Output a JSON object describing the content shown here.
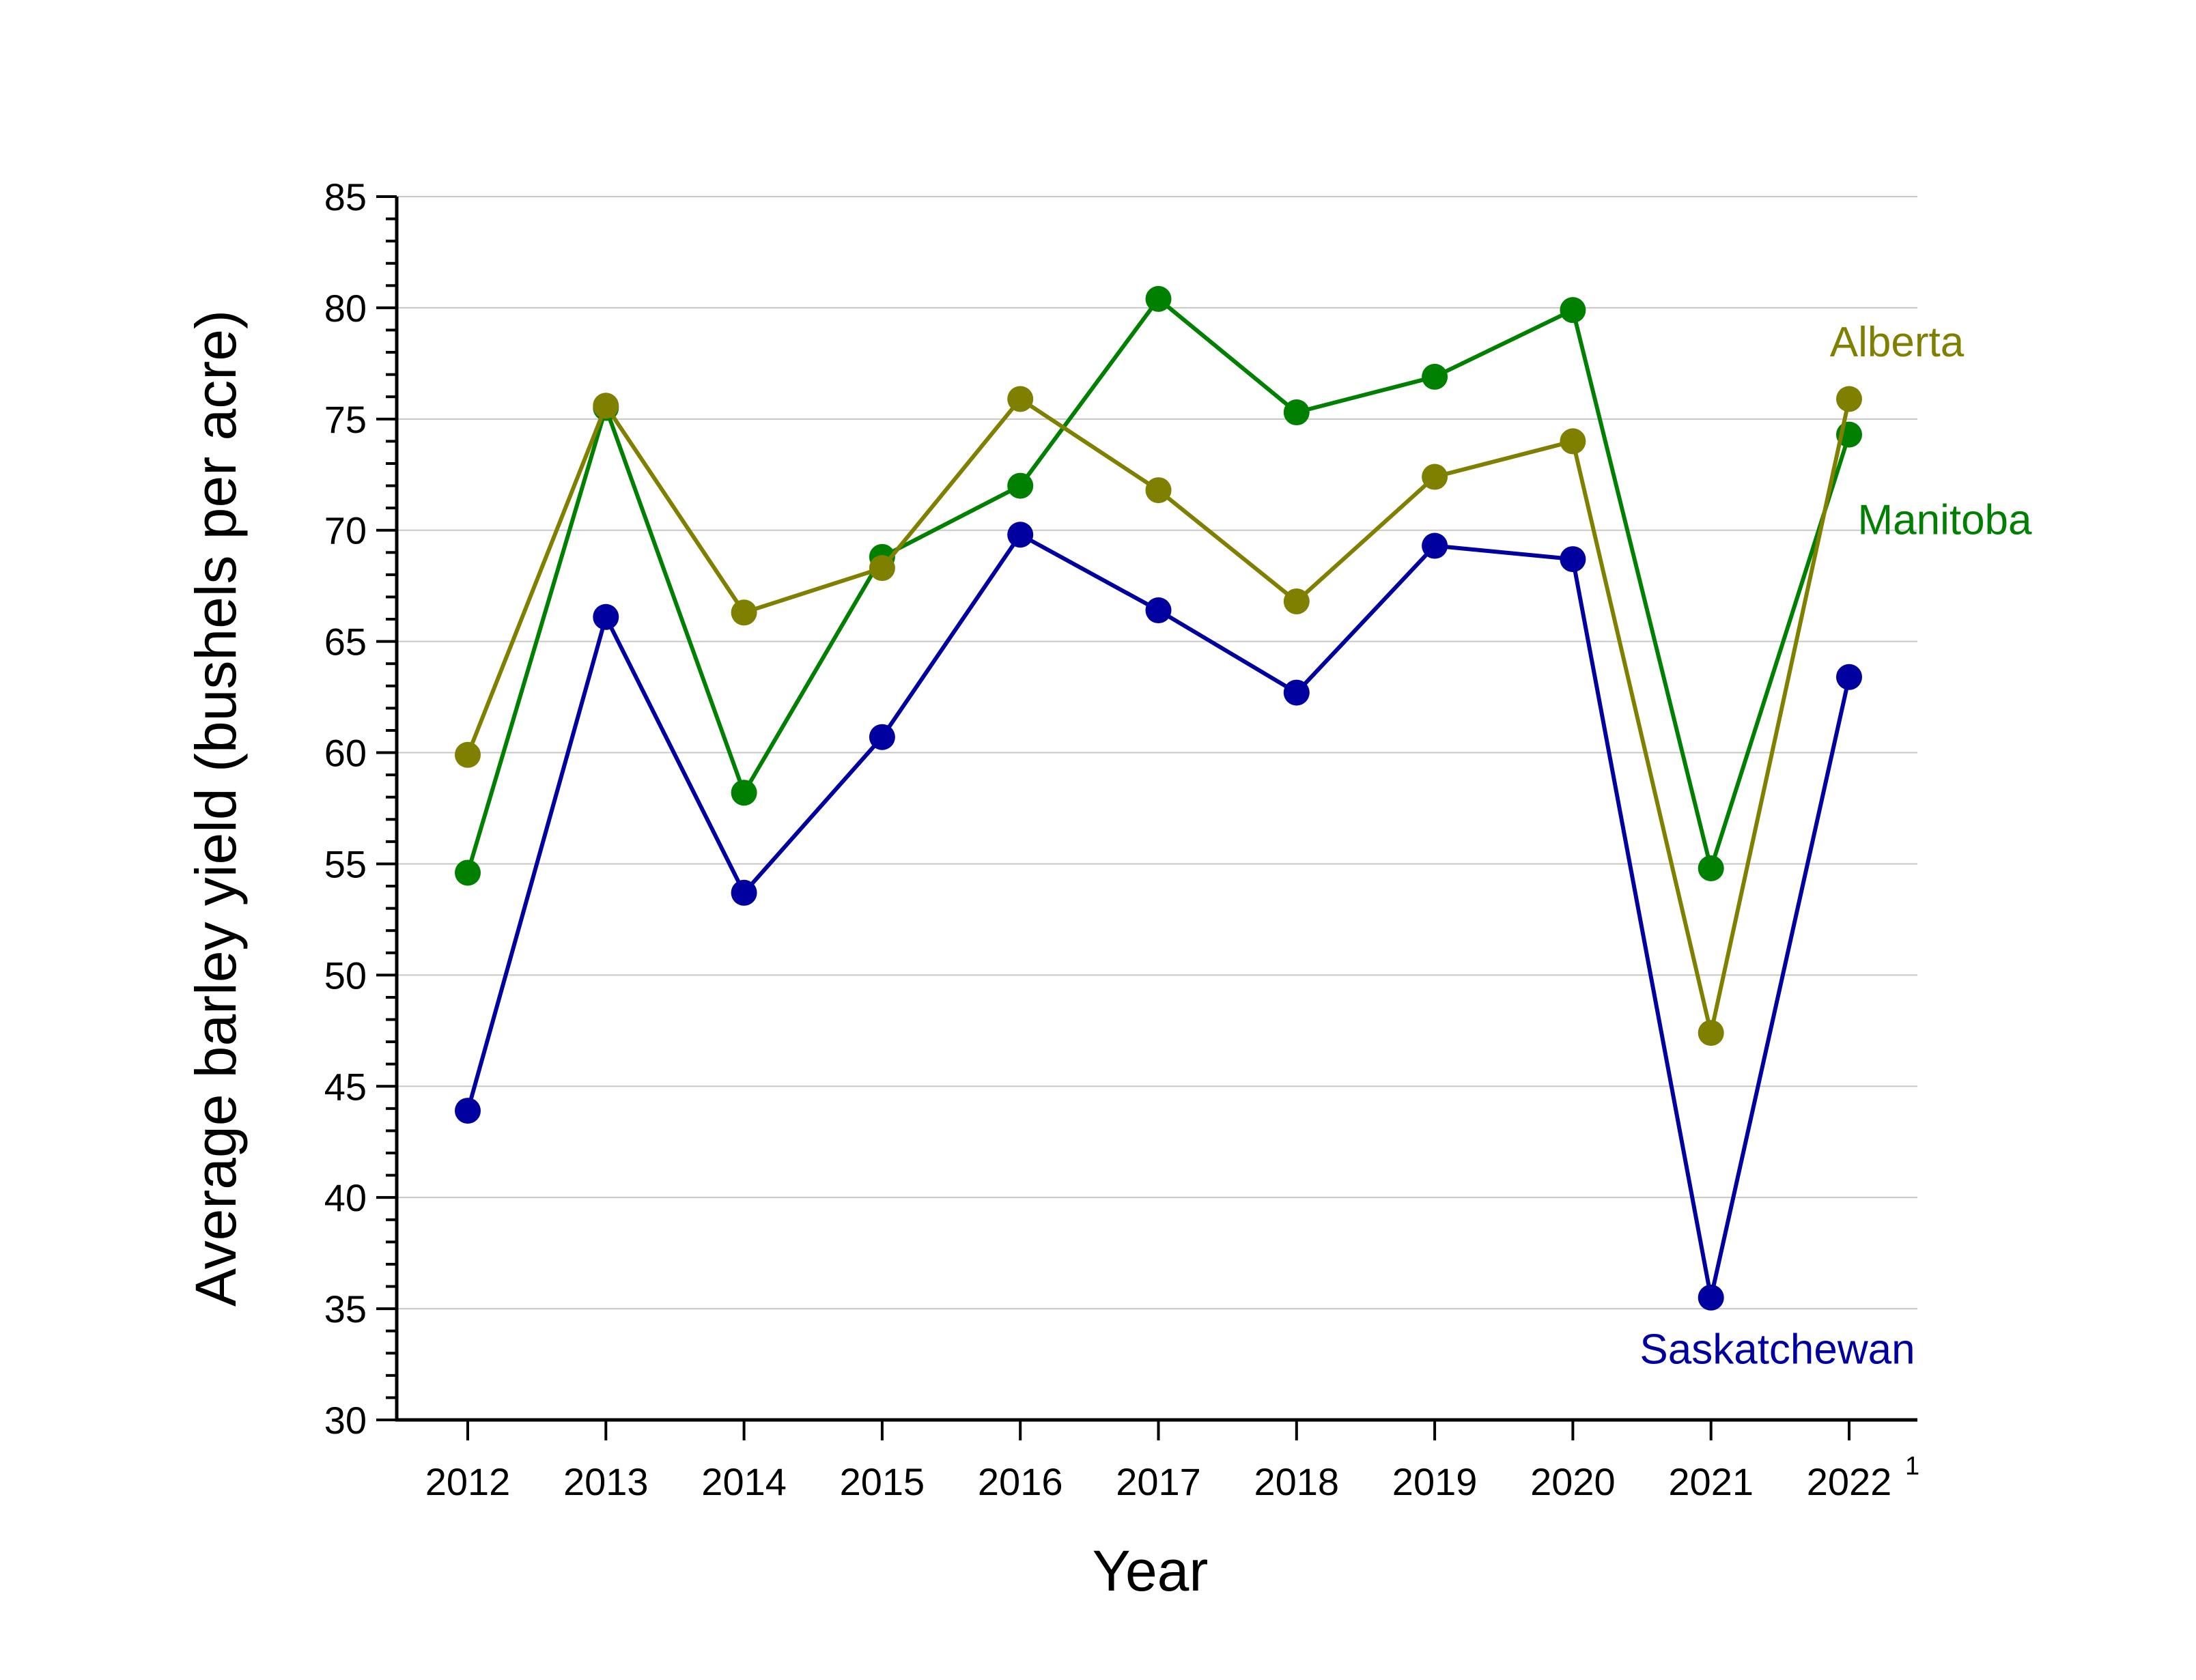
{
  "chart_data": {
    "type": "line",
    "xlabel": "Year",
    "ylabel": "Average barley yield (bushels per acre)",
    "ylim": [
      30,
      85
    ],
    "yticks": [
      30,
      35,
      40,
      45,
      50,
      55,
      60,
      65,
      70,
      75,
      80,
      85
    ],
    "categories": [
      "2012",
      "2013",
      "2014",
      "2015",
      "2016",
      "2017",
      "2018",
      "2019",
      "2020",
      "2021",
      "2022"
    ],
    "category_footnote": {
      "category": "2022",
      "mark": "1"
    },
    "grid": "horizontal",
    "series": [
      {
        "name": "Alberta",
        "color": "#808000",
        "values": [
          59.9,
          75.6,
          66.3,
          68.3,
          75.9,
          71.8,
          66.8,
          72.4,
          74.0,
          47.4,
          75.9
        ]
      },
      {
        "name": "Manitoba",
        "color": "#008000",
        "values": [
          54.6,
          75.5,
          58.2,
          68.8,
          72.0,
          80.4,
          75.3,
          76.9,
          79.9,
          54.8,
          74.3
        ]
      },
      {
        "name": "Saskatchewan",
        "color": "#0000A0",
        "values": [
          43.9,
          66.1,
          53.7,
          60.7,
          69.8,
          66.4,
          62.7,
          69.3,
          68.7,
          35.5,
          63.4
        ]
      }
    ]
  }
}
